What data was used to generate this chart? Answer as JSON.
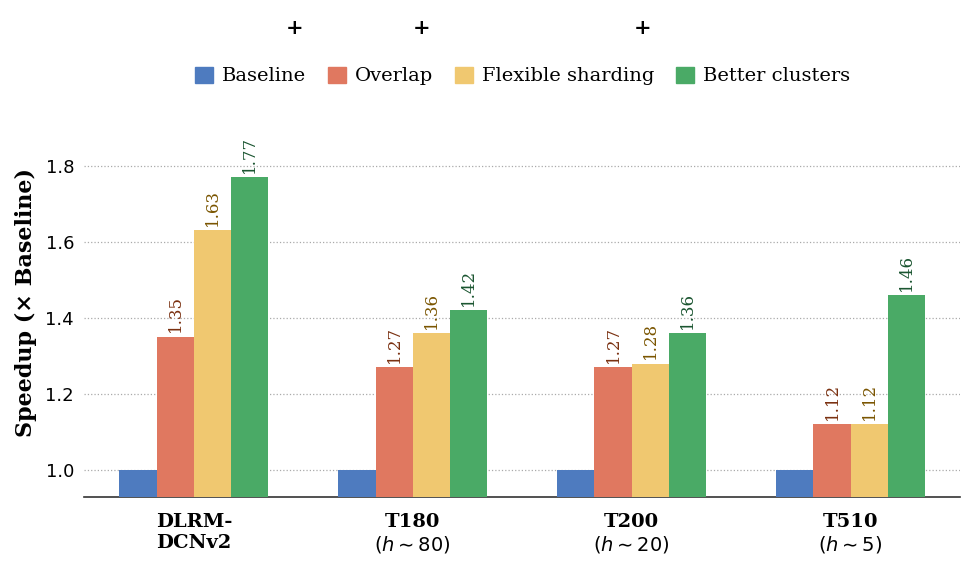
{
  "categories": [
    "DLRM-\nDCNv2",
    "T180\n($h\\sim$80)",
    "T200\n($h\\sim$20)",
    "T510\n($h\\sim$5)"
  ],
  "series": {
    "Baseline": [
      1.0,
      1.0,
      1.0,
      1.0
    ],
    "Overlap": [
      1.35,
      1.27,
      1.27,
      1.12
    ],
    "Flexible sharding": [
      1.63,
      1.36,
      1.28,
      1.12
    ],
    "Better clusters": [
      1.77,
      1.42,
      1.36,
      1.46
    ]
  },
  "colors": {
    "Baseline": "#4e7bbf",
    "Overlap": "#e07860",
    "Flexible sharding": "#f0c870",
    "Better clusters": "#4aaa66"
  },
  "label_colors": {
    "Baseline": "#000000",
    "Overlap": "#7a3010",
    "Flexible sharding": "#7a5500",
    "Better clusters": "#1a5530"
  },
  "ylabel": "Speedup (× Baseline)",
  "ylim": [
    0.93,
    1.95
  ],
  "yticks": [
    1.0,
    1.2,
    1.4,
    1.6,
    1.8
  ],
  "legend_labels": [
    "Baseline",
    "Overlap",
    "Flexible sharding",
    "Better clusters"
  ],
  "bar_width": 0.17,
  "background_color": "#ffffff",
  "grid_color": "#aaaaaa",
  "label_fontsize": 13,
  "tick_fontsize": 13,
  "bar_label_fontsize": 12
}
